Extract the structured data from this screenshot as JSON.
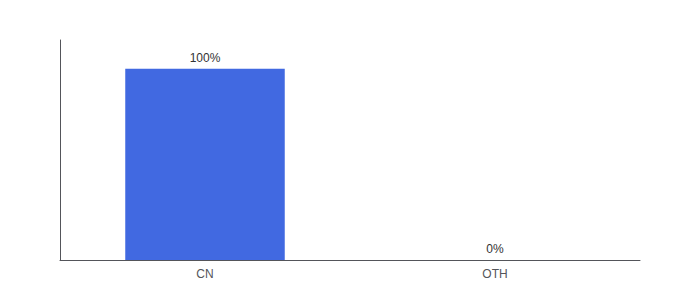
{
  "chart_data": {
    "type": "bar",
    "categories": [
      "CN",
      "OTH"
    ],
    "values": [
      100,
      0
    ],
    "value_labels": [
      "100%",
      "0%"
    ],
    "data_labels": true,
    "color": "#4169e1",
    "ylim": [
      0,
      115
    ],
    "grid": false,
    "tick_labels": "x"
  }
}
